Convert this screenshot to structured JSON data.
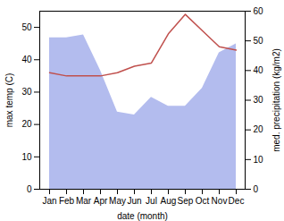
{
  "chart_data": {
    "type": "line",
    "categories": [
      "Jan",
      "Feb",
      "Mar",
      "Apr",
      "May",
      "Jun",
      "Jul",
      "Aug",
      "Sep",
      "Oct",
      "Nov",
      "Dec"
    ],
    "xlabel": "date (month)",
    "ylabel": "max temp (C)",
    "y2label": "med. precipitation (kg/m2)",
    "series": [
      {
        "type": "line",
        "color": "#c0504d",
        "values": [
          36,
          35,
          35,
          35,
          36,
          38,
          39,
          48,
          54,
          49,
          44,
          43
        ]
      },
      {
        "type": "area",
        "axis": "y2",
        "color": "#b3bcee",
        "values": [
          51,
          51,
          52,
          40,
          26,
          25,
          31,
          28,
          28,
          34,
          46,
          49
        ]
      }
    ],
    "ylim": [
      0,
      55
    ],
    "yticks": [
      0,
      10,
      20,
      30,
      40,
      50
    ],
    "y2lim": [
      0,
      60
    ],
    "y2ticks": [
      0,
      10,
      20,
      30,
      40,
      50,
      60
    ]
  }
}
